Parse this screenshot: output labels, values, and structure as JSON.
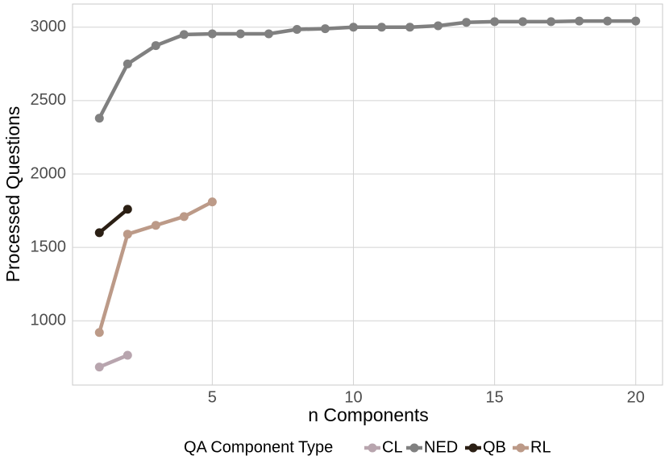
{
  "chart_data": {
    "type": "line",
    "x_label": "n Components",
    "y_label": "Processed Questions",
    "legend_title": "QA Component Type",
    "legend_position": "bottom",
    "grid": true,
    "xlim": [
      0.05,
      20.95
    ],
    "xticks": [
      5,
      10,
      15,
      20
    ],
    "ylim": [
      562,
      3158
    ],
    "yticks": [
      1000,
      1500,
      2000,
      2500,
      3000
    ],
    "series": [
      {
        "name": "CL",
        "color": "#b8a5ae",
        "x": [
          1,
          2
        ],
        "values": [
          685,
          765
        ]
      },
      {
        "name": "NED",
        "color": "#808080",
        "x": [
          1,
          2,
          3,
          4,
          5,
          6,
          7,
          8,
          9,
          10,
          11,
          12,
          13,
          14,
          15,
          16,
          17,
          18,
          19,
          20
        ],
        "values": [
          2380,
          2750,
          2875,
          2950,
          2955,
          2955,
          2955,
          2985,
          2990,
          3000,
          3000,
          3000,
          3010,
          3033,
          3038,
          3038,
          3038,
          3042,
          3042,
          3042
        ]
      },
      {
        "name": "QB",
        "color": "#2b1f14",
        "x": [
          1,
          2
        ],
        "values": [
          1600,
          1760
        ]
      },
      {
        "name": "RL",
        "color": "#bc9a88",
        "x": [
          1,
          2,
          3,
          4,
          5
        ],
        "values": [
          920,
          1590,
          1650,
          1710,
          1810
        ]
      }
    ]
  }
}
